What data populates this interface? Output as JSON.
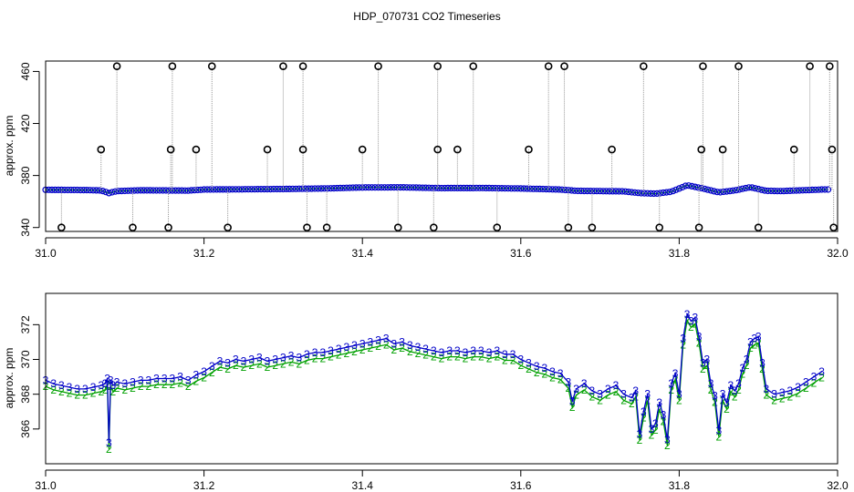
{
  "title": "HDP_070731  CO2 Timeseries",
  "colors": {
    "series1": "#00a000",
    "series2": "#0000c8",
    "flag": "#000000",
    "drop": "#999999"
  },
  "chart_data": [
    {
      "type": "scatter",
      "ylabel": "approx. ppm",
      "xlim": [
        31.0,
        32.0
      ],
      "ylim": [
        337,
        468
      ],
      "xticks": [
        "31.0",
        "31.2",
        "31.4",
        "31.6",
        "31.8",
        "32.0"
      ],
      "yticks": [
        "340",
        "380",
        "420",
        "460"
      ],
      "baseline": [
        [
          31.0,
          369.0
        ],
        [
          31.05,
          368.8
        ],
        [
          31.07,
          368.5
        ],
        [
          31.08,
          366.5
        ],
        [
          31.09,
          368.0
        ],
        [
          31.12,
          368.6
        ],
        [
          31.18,
          368.4
        ],
        [
          31.2,
          369.2
        ],
        [
          31.25,
          369.4
        ],
        [
          31.3,
          369.6
        ],
        [
          31.35,
          370.0
        ],
        [
          31.4,
          370.8
        ],
        [
          31.45,
          370.9
        ],
        [
          31.5,
          370.3
        ],
        [
          31.55,
          370.4
        ],
        [
          31.6,
          370.0
        ],
        [
          31.65,
          369.2
        ],
        [
          31.67,
          368.2
        ],
        [
          31.7,
          368.0
        ],
        [
          31.73,
          367.8
        ],
        [
          31.75,
          366.5
        ],
        [
          31.77,
          366.0
        ],
        [
          31.79,
          367.5
        ],
        [
          31.81,
          372.5
        ],
        [
          31.83,
          370.0
        ],
        [
          31.85,
          367.0
        ],
        [
          31.87,
          368.5
        ],
        [
          31.89,
          371.0
        ],
        [
          31.91,
          368.2
        ],
        [
          31.93,
          368.0
        ],
        [
          31.95,
          368.5
        ],
        [
          31.98,
          369.2
        ]
      ],
      "flagged": [
        [
          31.02,
          340
        ],
        [
          31.07,
          400
        ],
        [
          31.09,
          464
        ],
        [
          31.11,
          340
        ],
        [
          31.155,
          340
        ],
        [
          31.158,
          400
        ],
        [
          31.16,
          464
        ],
        [
          31.19,
          400
        ],
        [
          31.21,
          464
        ],
        [
          31.23,
          340
        ],
        [
          31.28,
          400
        ],
        [
          31.3,
          464
        ],
        [
          31.325,
          400
        ],
        [
          31.325,
          464
        ],
        [
          31.33,
          340
        ],
        [
          31.355,
          340
        ],
        [
          31.4,
          400
        ],
        [
          31.42,
          464
        ],
        [
          31.445,
          340
        ],
        [
          31.49,
          340
        ],
        [
          31.495,
          400
        ],
        [
          31.495,
          464
        ],
        [
          31.52,
          400
        ],
        [
          31.54,
          464
        ],
        [
          31.57,
          340
        ],
        [
          31.61,
          400
        ],
        [
          31.635,
          464
        ],
        [
          31.655,
          464
        ],
        [
          31.66,
          340
        ],
        [
          31.69,
          340
        ],
        [
          31.715,
          400
        ],
        [
          31.755,
          464
        ],
        [
          31.775,
          340
        ],
        [
          31.825,
          340
        ],
        [
          31.828,
          400
        ],
        [
          31.83,
          464
        ],
        [
          31.855,
          400
        ],
        [
          31.875,
          464
        ],
        [
          31.9,
          340
        ],
        [
          31.945,
          400
        ],
        [
          31.965,
          464
        ],
        [
          31.99,
          464
        ],
        [
          31.993,
          400
        ],
        [
          31.995,
          340
        ]
      ]
    },
    {
      "type": "line",
      "ylabel": "approx. ppm",
      "xlim": [
        31.0,
        32.0
      ],
      "ylim": [
        364.0,
        373.8
      ],
      "xticks": [
        "31.0",
        "31.2",
        "31.4",
        "31.6",
        "31.8",
        "32.0"
      ],
      "yticks": [
        "366",
        "368",
        "370",
        "372"
      ],
      "series": [
        {
          "marker": "2",
          "offset": -0.35
        },
        {
          "marker": "3",
          "offset": 0
        }
      ],
      "x": [
        31.0,
        31.01,
        31.02,
        31.03,
        31.04,
        31.05,
        31.06,
        31.07,
        31.075,
        31.078,
        31.08,
        31.082,
        31.085,
        31.09,
        31.1,
        31.11,
        31.12,
        31.13,
        31.14,
        31.15,
        31.16,
        31.17,
        31.18,
        31.19,
        31.2,
        31.21,
        31.22,
        31.23,
        31.24,
        31.25,
        31.26,
        31.27,
        31.28,
        31.29,
        31.3,
        31.31,
        31.32,
        31.33,
        31.34,
        31.35,
        31.36,
        31.37,
        31.38,
        31.39,
        31.4,
        31.41,
        31.42,
        31.43,
        31.44,
        31.45,
        31.46,
        31.47,
        31.48,
        31.49,
        31.5,
        31.51,
        31.52,
        31.53,
        31.54,
        31.55,
        31.56,
        31.57,
        31.58,
        31.59,
        31.6,
        31.61,
        31.62,
        31.63,
        31.64,
        31.65,
        31.66,
        31.665,
        31.67,
        31.68,
        31.69,
        31.7,
        31.71,
        31.72,
        31.73,
        31.74,
        31.745,
        31.75,
        31.755,
        31.76,
        31.765,
        31.77,
        31.775,
        31.78,
        31.785,
        31.79,
        31.795,
        31.8,
        31.805,
        31.81,
        31.815,
        31.82,
        31.825,
        31.83,
        31.835,
        31.84,
        31.845,
        31.85,
        31.855,
        31.86,
        31.865,
        31.87,
        31.875,
        31.88,
        31.885,
        31.89,
        31.895,
        31.9,
        31.905,
        31.91,
        31.92,
        31.93,
        31.94,
        31.95,
        31.96,
        31.97,
        31.98
      ],
      "values": [
        368.8,
        368.6,
        368.5,
        368.4,
        368.3,
        368.3,
        368.4,
        368.5,
        368.6,
        368.9,
        365.2,
        368.8,
        368.5,
        368.7,
        368.6,
        368.7,
        368.8,
        368.8,
        368.9,
        368.9,
        368.9,
        369.0,
        368.8,
        369.1,
        369.3,
        369.6,
        369.9,
        369.8,
        370.0,
        369.9,
        370.0,
        370.1,
        369.9,
        370.0,
        370.1,
        370.2,
        370.1,
        370.3,
        370.4,
        370.4,
        370.5,
        370.6,
        370.7,
        370.8,
        370.9,
        371.0,
        371.1,
        371.2,
        370.9,
        371.0,
        370.8,
        370.7,
        370.6,
        370.5,
        370.4,
        370.5,
        370.5,
        370.4,
        370.5,
        370.5,
        370.4,
        370.5,
        370.3,
        370.3,
        370.0,
        369.8,
        369.6,
        369.5,
        369.3,
        369.2,
        368.7,
        367.6,
        368.3,
        368.6,
        368.2,
        368.0,
        368.3,
        368.5,
        368.0,
        367.8,
        368.2,
        365.7,
        367.0,
        368.0,
        366.0,
        366.3,
        367.5,
        366.8,
        365.4,
        368.6,
        369.2,
        368.0,
        371.2,
        372.6,
        372.2,
        372.4,
        371.3,
        369.8,
        370.0,
        368.6,
        367.9,
        365.9,
        368.0,
        367.5,
        368.5,
        368.2,
        368.6,
        369.5,
        370.0,
        371.0,
        371.2,
        371.3,
        369.8,
        368.3,
        368.0,
        368.1,
        368.2,
        368.4,
        368.7,
        369.0,
        369.3
      ]
    }
  ]
}
